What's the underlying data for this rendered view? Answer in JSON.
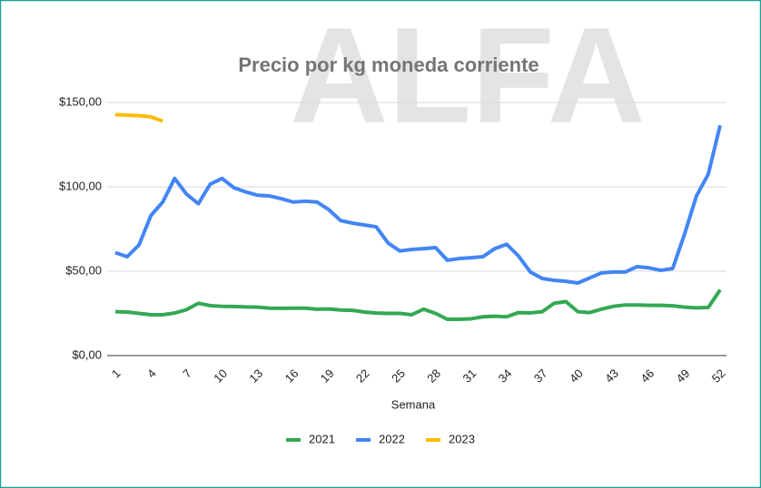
{
  "chart_data": {
    "type": "line",
    "title": "Precio por kg moneda corriente",
    "watermark": "ALFA",
    "x_label": "Semana",
    "x": [
      1,
      2,
      3,
      4,
      5,
      6,
      7,
      8,
      9,
      10,
      11,
      12,
      13,
      14,
      15,
      16,
      17,
      18,
      19,
      20,
      21,
      22,
      23,
      24,
      25,
      26,
      27,
      28,
      29,
      30,
      31,
      32,
      33,
      34,
      35,
      36,
      37,
      38,
      39,
      40,
      41,
      42,
      43,
      44,
      45,
      46,
      47,
      48,
      49,
      50,
      51,
      52
    ],
    "xlim": [
      1,
      52
    ],
    "xticks": [
      1,
      4,
      7,
      10,
      13,
      16,
      19,
      22,
      25,
      28,
      31,
      34,
      37,
      40,
      43,
      46,
      49,
      52
    ],
    "ylim": [
      0,
      150
    ],
    "yticks": [
      {
        "value": 0,
        "label": "$0,00"
      },
      {
        "value": 50,
        "label": "$50,00"
      },
      {
        "value": 100,
        "label": "$100,00"
      },
      {
        "value": 150,
        "label": "$150,00"
      }
    ],
    "grid": true,
    "legend": "bottom",
    "series": [
      {
        "name": "2021",
        "color": "#34a853",
        "values": [
          26,
          25.8,
          25,
          24.2,
          24.2,
          25.2,
          27.2,
          31,
          29.6,
          29.2,
          29.1,
          28.8,
          28.7,
          28.1,
          28,
          28.1,
          28.1,
          27.5,
          27.6,
          27,
          26.8,
          25.8,
          25.2,
          25,
          25,
          24.2,
          27.5,
          25,
          21.5,
          21.5,
          21.8,
          23,
          23.3,
          23,
          25.5,
          25.3,
          26,
          31,
          32,
          26,
          25.5,
          27.5,
          29.2,
          30,
          30,
          29.8,
          29.8,
          29.5,
          28.7,
          28.3,
          28.5,
          39
        ]
      },
      {
        "name": "2022",
        "color": "#4285f4",
        "values": [
          61,
          58.6,
          65.6,
          83,
          91,
          105,
          95.7,
          90,
          101.6,
          105,
          99.5,
          97,
          95,
          94.6,
          93,
          91,
          91.5,
          91,
          86.5,
          80,
          78.5,
          77.4,
          76.3,
          66.7,
          62,
          62.9,
          63.4,
          64,
          56.5,
          57.5,
          58,
          58.6,
          63.4,
          66,
          59,
          49.5,
          45.7,
          44.6,
          44,
          43,
          46,
          49,
          49.5,
          49.5,
          52.7,
          52,
          50.5,
          51.6,
          72,
          94.6,
          107.5,
          136.5
        ]
      },
      {
        "name": "2023",
        "color": "#fbbc04",
        "values": [
          142.8,
          142.5,
          142.2,
          141.5,
          139,
          null,
          null,
          null,
          null,
          null,
          null,
          null,
          null,
          null,
          null,
          null,
          null,
          null,
          null,
          null,
          null,
          null,
          null,
          null,
          null,
          null,
          null,
          null,
          null,
          null,
          null,
          null,
          null,
          null,
          null,
          null,
          null,
          null,
          null,
          null,
          null,
          null,
          null,
          null,
          null,
          null,
          null,
          null,
          null,
          null,
          null,
          null
        ]
      }
    ]
  }
}
